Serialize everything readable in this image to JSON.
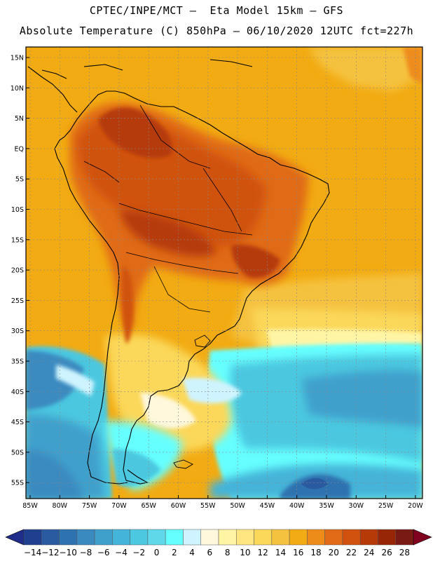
{
  "header": {
    "line1": "CPTEC/INPE/MCT –  Eta Model 15km – GFS",
    "line2": "Absolute Temperature (C) 850hPa – 06/10/2020 12UTC fct=227h"
  },
  "map": {
    "lat_labels": [
      "15N",
      "10N",
      "5N",
      "EQ",
      "5S",
      "10S",
      "15S",
      "20S",
      "25S",
      "30S",
      "35S",
      "40S",
      "45S",
      "50S",
      "55S"
    ],
    "lon_labels": [
      "85W",
      "80W",
      "75W",
      "70W",
      "65W",
      "60W",
      "55W",
      "50W",
      "45W",
      "40W",
      "35W",
      "30W",
      "25W",
      "20W"
    ]
  },
  "colorbar": {
    "labels": [
      "-14",
      "-12",
      "-10",
      "-8",
      "-6",
      "-4",
      "-2",
      "0",
      "2",
      "4",
      "6",
      "8",
      "10",
      "12",
      "14",
      "16",
      "18",
      "20",
      "22",
      "24",
      "26",
      "28"
    ],
    "colors": [
      "#1f3f8f",
      "#2a5aa0",
      "#2f72b0",
      "#3a8ac0",
      "#3fa0cc",
      "#44b4d8",
      "#4cc8e0",
      "#5fd8ea",
      "#66ffff",
      "#cff4ff",
      "#fff8dc",
      "#fff5a5",
      "#ffe680",
      "#fbd85a",
      "#f5c240",
      "#f2ab12",
      "#ee8c1a",
      "#e06a16",
      "#d0520e",
      "#b53a08",
      "#962606",
      "#7a1a14"
    ],
    "low_end_color": "#1e2c8a",
    "high_end_color": "#800020"
  }
}
